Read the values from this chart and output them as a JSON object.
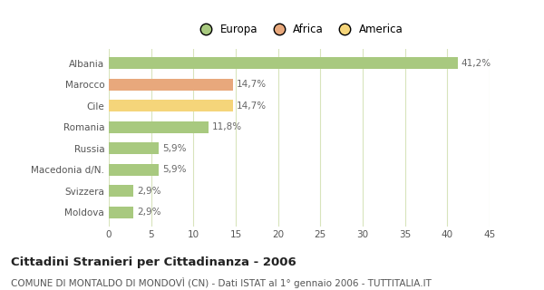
{
  "categories": [
    "Albania",
    "Marocco",
    "Cile",
    "Romania",
    "Russia",
    "Macedonia d/N.",
    "Svizzera",
    "Moldova"
  ],
  "values": [
    41.2,
    14.7,
    14.7,
    11.8,
    5.9,
    5.9,
    2.9,
    2.9
  ],
  "labels": [
    "41,2%",
    "14,7%",
    "14,7%",
    "11,8%",
    "5,9%",
    "5,9%",
    "2,9%",
    "2,9%"
  ],
  "colors": [
    "#a8c97f",
    "#e8a87c",
    "#f5d57a",
    "#a8c97f",
    "#a8c97f",
    "#a8c97f",
    "#a8c97f",
    "#a8c97f"
  ],
  "legend": [
    {
      "label": "Europa",
      "color": "#a8c97f"
    },
    {
      "label": "Africa",
      "color": "#e8a87c"
    },
    {
      "label": "America",
      "color": "#f5d57a"
    }
  ],
  "xlim": [
    0,
    45
  ],
  "xticks": [
    0,
    5,
    10,
    15,
    20,
    25,
    30,
    35,
    40,
    45
  ],
  "title": "Cittadini Stranieri per Cittadinanza - 2006",
  "subtitle": "COMUNE DI MONTALDO DI MONDOVÌ (CN) - Dati ISTAT al 1° gennaio 2006 - TUTTITALIA.IT",
  "bg_color": "#ffffff",
  "grid_color": "#d8e4bc",
  "bar_height": 0.55,
  "title_fontsize": 9.5,
  "subtitle_fontsize": 7.5,
  "label_fontsize": 7.5,
  "tick_fontsize": 7.5,
  "legend_fontsize": 8.5
}
